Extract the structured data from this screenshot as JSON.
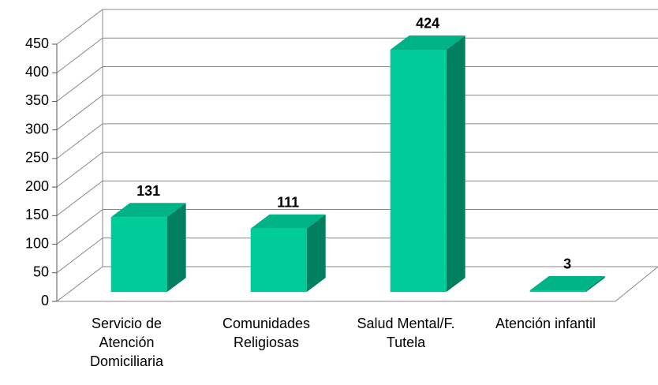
{
  "chart_data": {
    "type": "bar3d",
    "categories": [
      "Servicio de Atención Domiciliaria",
      "Comunidades Religiosas",
      "Salud Mental/F. Tutela",
      "Atención infantil"
    ],
    "values": [
      131,
      111,
      424,
      3
    ],
    "color": "#00cc99",
    "ylim": [
      0,
      450
    ],
    "yticks": [
      0,
      50,
      100,
      150,
      200,
      250,
      300,
      350,
      400,
      450
    ],
    "grid": true
  }
}
